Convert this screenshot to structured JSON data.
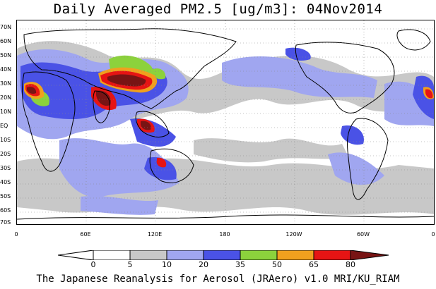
{
  "title": "Daily Averaged PM2.5 [ug/m3]: 04Nov2014",
  "latitude_labels": [
    "70N",
    "60N",
    "50N",
    "40N",
    "30N",
    "20N",
    "10N",
    "EQ",
    "10S",
    "20S",
    "30S",
    "40S",
    "50S",
    "60S",
    "70S"
  ],
  "longitude_labels": [
    "0",
    "60E",
    "120E",
    "180",
    "120W",
    "60W",
    "0"
  ],
  "colorbar": {
    "ticks": [
      "0",
      "5",
      "10",
      "20",
      "35",
      "50",
      "65",
      "80"
    ],
    "colors": [
      "#ffffff",
      "#c8c8c8",
      "#a0a6f0",
      "#4a52e6",
      "#8cd23c",
      "#f0a01e",
      "#e61414",
      "#781414"
    ],
    "unit": "ug/m3"
  },
  "credit": "The Japanese Reanalysis for Aerosol (JRAero) v1.0 MRI/KU_RIAM"
}
